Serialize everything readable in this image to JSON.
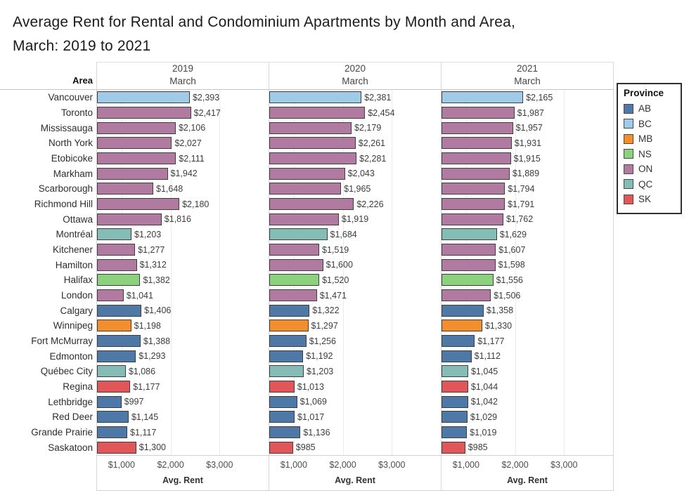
{
  "title": {
    "line1": "Average Rent for Rental and Condominium Apartments by Month and Area,",
    "line2": "March: 2019 to 2021"
  },
  "chart_data": {
    "type": "bar",
    "orientation": "horizontal",
    "title": "Average Rent for Rental and Condominium Apartments by Month and Area, March: 2019 to 2021",
    "row_header": "Area",
    "xlabel": "Avg. Rent",
    "xlim": [
      500,
      4000
    ],
    "x_tick_values": [
      1000,
      2000,
      3000
    ],
    "x_tick_labels": [
      "$1,000",
      "$2,000",
      "$3,000"
    ],
    "grid": true,
    "legend_position": "right",
    "panels": [
      {
        "year": "2019",
        "month": "March"
      },
      {
        "year": "2020",
        "month": "March"
      },
      {
        "year": "2021",
        "month": "March"
      }
    ],
    "legend": {
      "title": "Province",
      "entries": [
        {
          "label": "AB",
          "color": "#4E79A7"
        },
        {
          "label": "BC",
          "color": "#A0CBE8"
        },
        {
          "label": "MB",
          "color": "#F28E2B"
        },
        {
          "label": "NS",
          "color": "#8CD17D"
        },
        {
          "label": "ON",
          "color": "#B07AA1"
        },
        {
          "label": "QC",
          "color": "#86BCB6"
        },
        {
          "label": "SK",
          "color": "#E15759"
        }
      ]
    },
    "province_colors": {
      "AB": "#4E79A7",
      "BC": "#A0CBE8",
      "MB": "#F28E2B",
      "NS": "#8CD17D",
      "ON": "#B07AA1",
      "QC": "#86BCB6",
      "SK": "#E15759"
    },
    "rows": [
      {
        "area": "Vancouver",
        "province": "BC",
        "values": [
          2393,
          2381,
          2165
        ]
      },
      {
        "area": "Toronto",
        "province": "ON",
        "values": [
          2417,
          2454,
          1987
        ]
      },
      {
        "area": "Mississauga",
        "province": "ON",
        "values": [
          2106,
          2179,
          1957
        ]
      },
      {
        "area": "North York",
        "province": "ON",
        "values": [
          2027,
          2261,
          1931
        ]
      },
      {
        "area": "Etobicoke",
        "province": "ON",
        "values": [
          2111,
          2281,
          1915
        ]
      },
      {
        "area": "Markham",
        "province": "ON",
        "values": [
          1942,
          2043,
          1889
        ]
      },
      {
        "area": "Scarborough",
        "province": "ON",
        "values": [
          1648,
          1965,
          1794
        ]
      },
      {
        "area": "Richmond Hill",
        "province": "ON",
        "values": [
          2180,
          2226,
          1791
        ]
      },
      {
        "area": "Ottawa",
        "province": "ON",
        "values": [
          1816,
          1919,
          1762
        ]
      },
      {
        "area": "Montréal",
        "province": "QC",
        "values": [
          1203,
          1684,
          1629
        ]
      },
      {
        "area": "Kitchener",
        "province": "ON",
        "values": [
          1277,
          1519,
          1607
        ]
      },
      {
        "area": "Hamilton",
        "province": "ON",
        "values": [
          1312,
          1600,
          1598
        ]
      },
      {
        "area": "Halifax",
        "province": "NS",
        "values": [
          1382,
          1520,
          1556
        ]
      },
      {
        "area": "London",
        "province": "ON",
        "values": [
          1041,
          1471,
          1506
        ]
      },
      {
        "area": "Calgary",
        "province": "AB",
        "values": [
          1406,
          1322,
          1358
        ]
      },
      {
        "area": "Winnipeg",
        "province": "MB",
        "values": [
          1198,
          1297,
          1330
        ]
      },
      {
        "area": "Fort McMurray",
        "province": "AB",
        "values": [
          1388,
          1256,
          1177
        ]
      },
      {
        "area": "Edmonton",
        "province": "AB",
        "values": [
          1293,
          1192,
          1112
        ]
      },
      {
        "area": "Québec City",
        "province": "QC",
        "values": [
          1086,
          1203,
          1045
        ]
      },
      {
        "area": "Regina",
        "province": "SK",
        "values": [
          1177,
          1013,
          1044
        ]
      },
      {
        "area": "Lethbridge",
        "province": "AB",
        "values": [
          997,
          1069,
          1042
        ]
      },
      {
        "area": "Red Deer",
        "province": "AB",
        "values": [
          1145,
          1017,
          1029
        ]
      },
      {
        "area": "Grande Prairie",
        "province": "AB",
        "values": [
          1117,
          1136,
          1019
        ]
      },
      {
        "area": "Saskatoon",
        "province": "SK",
        "values": [
          1300,
          985,
          985
        ]
      }
    ]
  }
}
